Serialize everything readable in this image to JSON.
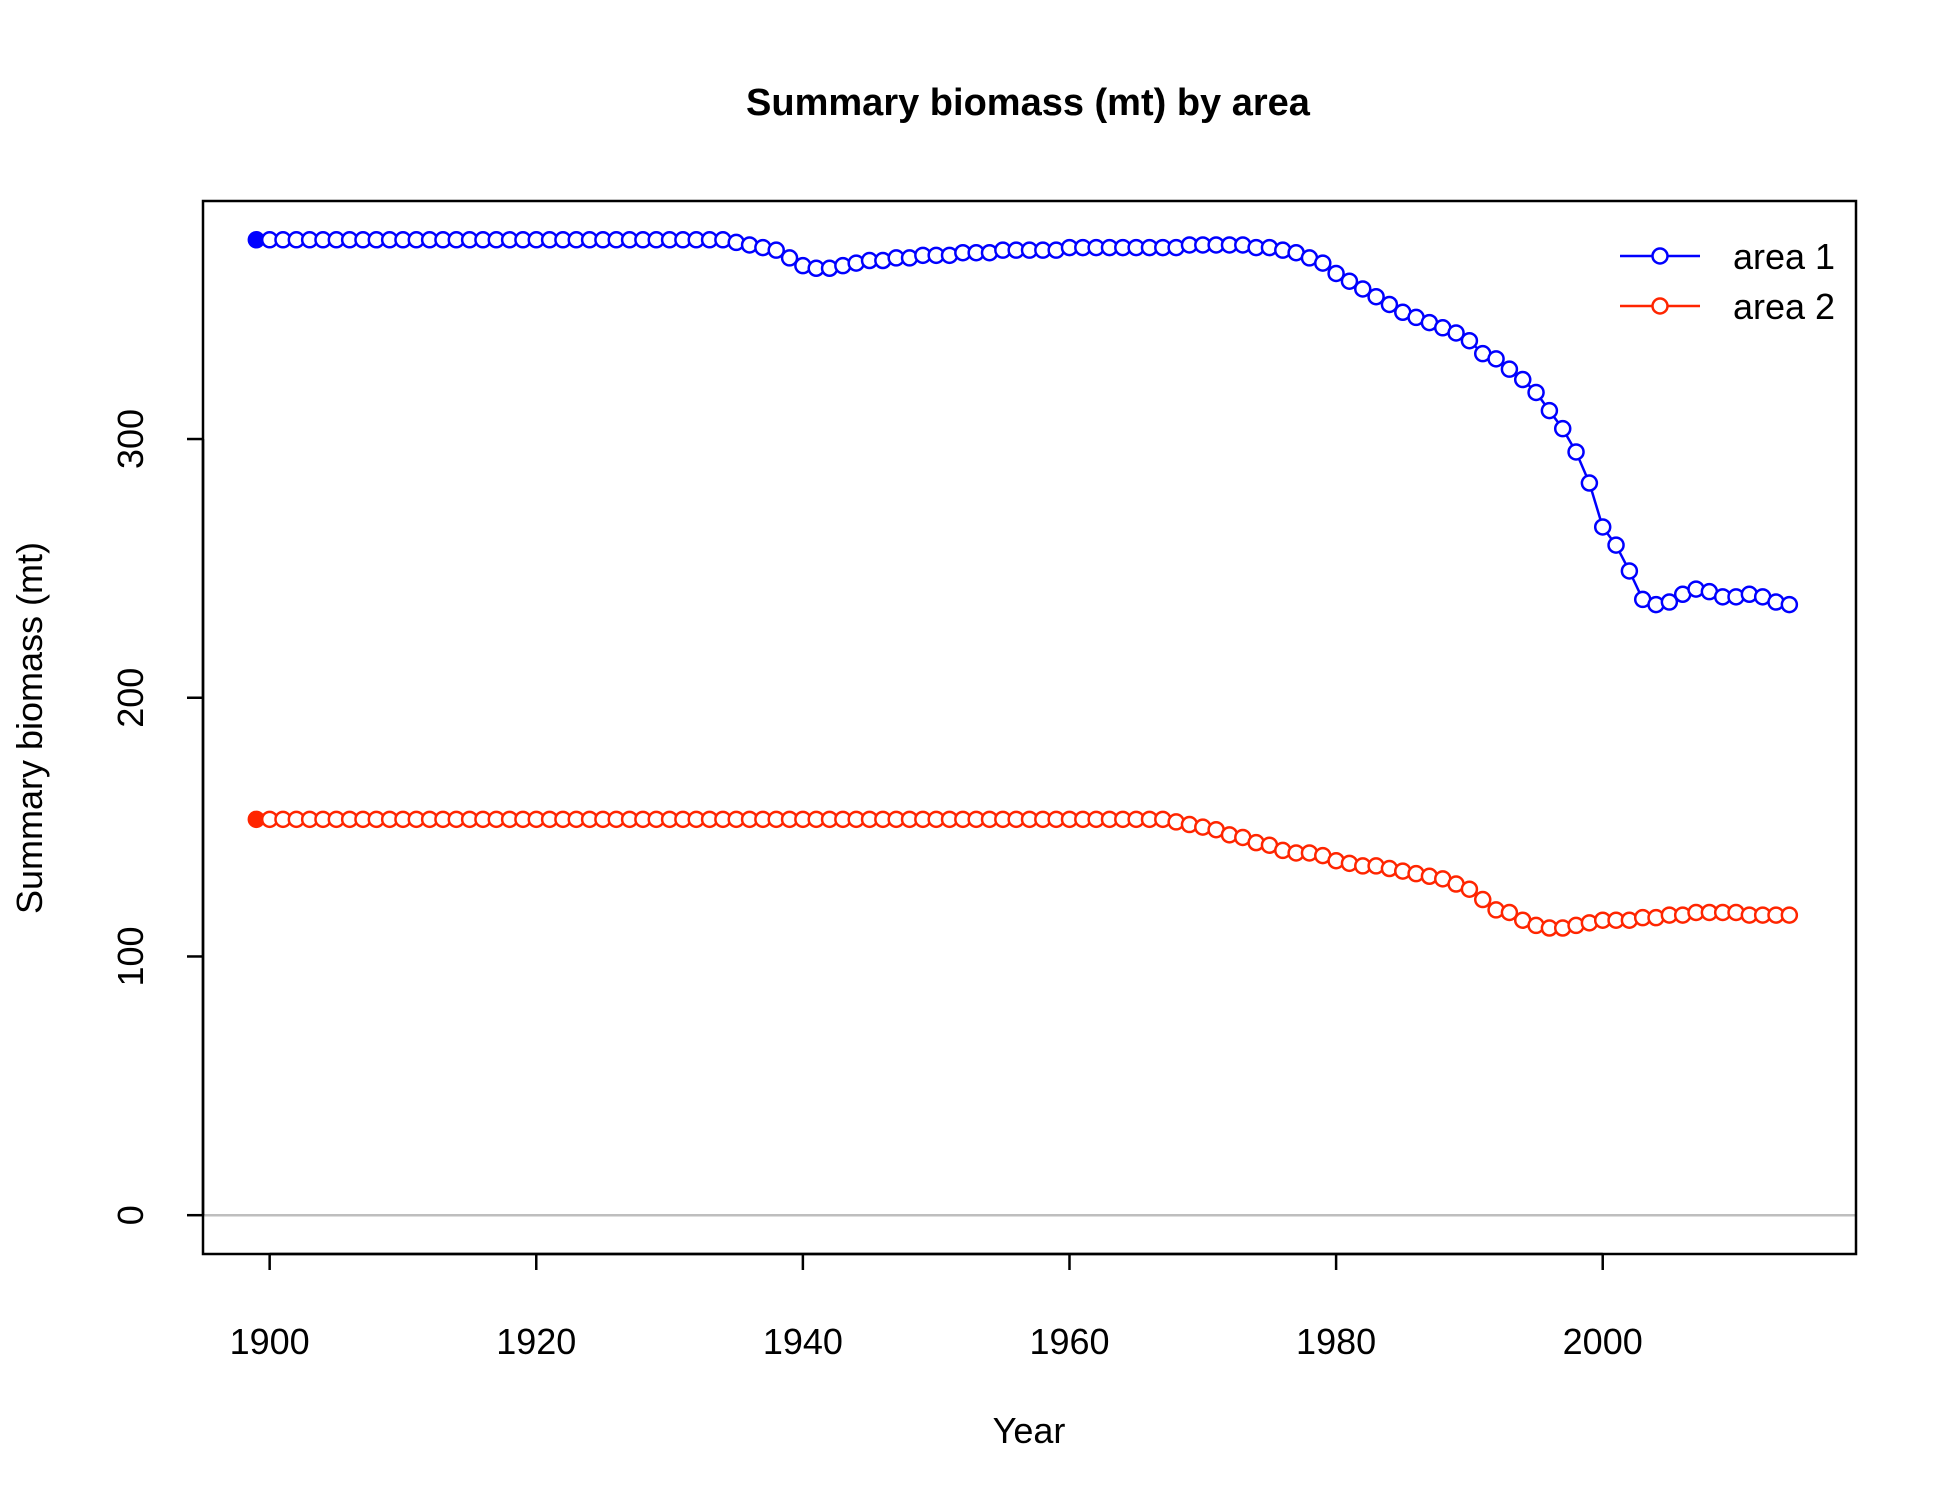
{
  "chart_data": {
    "type": "line",
    "title": "Summary biomass (mt) by area",
    "xlabel": "Year",
    "ylabel": "Summary biomass (mt)",
    "xlim": [
      1895,
      2019
    ],
    "ylim": [
      -15,
      392
    ],
    "xticks": [
      1900,
      1920,
      1940,
      1960,
      1980,
      2000
    ],
    "yticks": [
      0,
      100,
      200,
      300
    ],
    "hline": 0,
    "legend_position": "top-right",
    "colors": {
      "area 1": "#0000ff",
      "area 2": "#ff2500",
      "zero_line": "#bebebe"
    },
    "series": [
      {
        "name": "area 1",
        "x": [
          1899,
          1900,
          1901,
          1902,
          1903,
          1904,
          1905,
          1906,
          1907,
          1908,
          1909,
          1910,
          1911,
          1912,
          1913,
          1914,
          1915,
          1916,
          1917,
          1918,
          1919,
          1920,
          1921,
          1922,
          1923,
          1924,
          1925,
          1926,
          1927,
          1928,
          1929,
          1930,
          1931,
          1932,
          1933,
          1934,
          1935,
          1936,
          1937,
          1938,
          1939,
          1940,
          1941,
          1942,
          1943,
          1944,
          1945,
          1946,
          1947,
          1948,
          1949,
          1950,
          1951,
          1952,
          1953,
          1954,
          1955,
          1956,
          1957,
          1958,
          1959,
          1960,
          1961,
          1962,
          1963,
          1964,
          1965,
          1966,
          1967,
          1968,
          1969,
          1970,
          1971,
          1972,
          1973,
          1974,
          1975,
          1976,
          1977,
          1978,
          1979,
          1980,
          1981,
          1982,
          1983,
          1984,
          1985,
          1986,
          1987,
          1988,
          1989,
          1990,
          1991,
          1992,
          1993,
          1994,
          1995,
          1996,
          1997,
          1998,
          1999,
          2000,
          2001,
          2002,
          2003,
          2004,
          2005,
          2006,
          2007,
          2008,
          2009,
          2010,
          2011,
          2012,
          2013,
          2014
        ],
        "values": [
          377,
          377,
          377,
          377,
          377,
          377,
          377,
          377,
          377,
          377,
          377,
          377,
          377,
          377,
          377,
          377,
          377,
          377,
          377,
          377,
          377,
          377,
          377,
          377,
          377,
          377,
          377,
          377,
          377,
          377,
          377,
          377,
          377,
          377,
          377,
          377,
          376,
          375,
          374,
          373,
          370,
          367,
          366,
          366,
          367,
          368,
          369,
          369,
          370,
          370,
          371,
          371,
          371,
          372,
          372,
          372,
          373,
          373,
          373,
          373,
          373,
          374,
          374,
          374,
          374,
          374,
          374,
          374,
          374,
          374,
          375,
          375,
          375,
          375,
          375,
          374,
          374,
          373,
          372,
          370,
          368,
          364,
          361,
          358,
          355,
          352,
          349,
          347,
          345,
          343,
          341,
          338,
          333,
          331,
          327,
          323,
          318,
          311,
          304,
          295,
          283,
          266,
          259,
          249,
          238,
          236,
          237,
          240,
          242,
          241,
          239,
          239,
          240,
          239,
          237,
          236
        ]
      },
      {
        "name": "area 2",
        "x": [
          1899,
          1900,
          1901,
          1902,
          1903,
          1904,
          1905,
          1906,
          1907,
          1908,
          1909,
          1910,
          1911,
          1912,
          1913,
          1914,
          1915,
          1916,
          1917,
          1918,
          1919,
          1920,
          1921,
          1922,
          1923,
          1924,
          1925,
          1926,
          1927,
          1928,
          1929,
          1930,
          1931,
          1932,
          1933,
          1934,
          1935,
          1936,
          1937,
          1938,
          1939,
          1940,
          1941,
          1942,
          1943,
          1944,
          1945,
          1946,
          1947,
          1948,
          1949,
          1950,
          1951,
          1952,
          1953,
          1954,
          1955,
          1956,
          1957,
          1958,
          1959,
          1960,
          1961,
          1962,
          1963,
          1964,
          1965,
          1966,
          1967,
          1968,
          1969,
          1970,
          1971,
          1972,
          1973,
          1974,
          1975,
          1976,
          1977,
          1978,
          1979,
          1980,
          1981,
          1982,
          1983,
          1984,
          1985,
          1986,
          1987,
          1988,
          1989,
          1990,
          1991,
          1992,
          1993,
          1994,
          1995,
          1996,
          1997,
          1998,
          1999,
          2000,
          2001,
          2002,
          2003,
          2004,
          2005,
          2006,
          2007,
          2008,
          2009,
          2010,
          2011,
          2012,
          2013,
          2014
        ],
        "values": [
          153,
          153,
          153,
          153,
          153,
          153,
          153,
          153,
          153,
          153,
          153,
          153,
          153,
          153,
          153,
          153,
          153,
          153,
          153,
          153,
          153,
          153,
          153,
          153,
          153,
          153,
          153,
          153,
          153,
          153,
          153,
          153,
          153,
          153,
          153,
          153,
          153,
          153,
          153,
          153,
          153,
          153,
          153,
          153,
          153,
          153,
          153,
          153,
          153,
          153,
          153,
          153,
          153,
          153,
          153,
          153,
          153,
          153,
          153,
          153,
          153,
          153,
          153,
          153,
          153,
          153,
          153,
          153,
          153,
          152,
          151,
          150,
          149,
          147,
          146,
          144,
          143,
          141,
          140,
          140,
          139,
          137,
          136,
          135,
          135,
          134,
          133,
          132,
          131,
          130,
          128,
          126,
          122,
          118,
          117,
          114,
          112,
          111,
          111,
          112,
          113,
          114,
          114,
          114,
          115,
          115,
          116,
          116,
          117,
          117,
          117,
          117,
          116,
          116,
          116,
          116
        ]
      }
    ]
  }
}
